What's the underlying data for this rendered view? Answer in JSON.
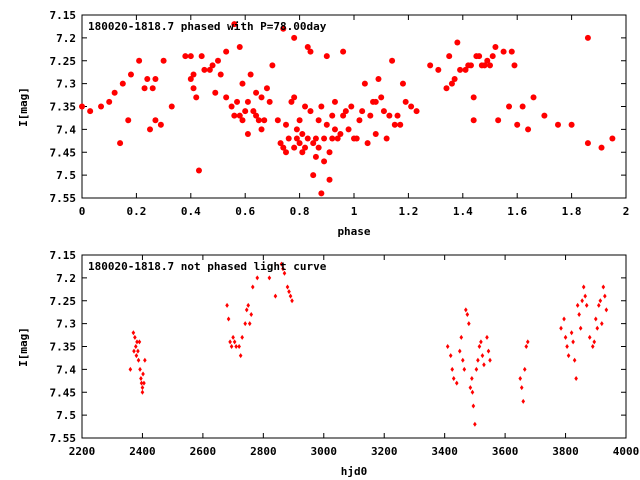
{
  "chart_data": [
    {
      "type": "scatter",
      "title": "180020-1818.7 phased with P=78.00day",
      "xlabel": "phase",
      "ylabel": "I[mag]",
      "xlim": [
        0,
        2
      ],
      "ylim": [
        7.55,
        7.15
      ],
      "y_inverted": true,
      "grid": false,
      "marker_color": "#ff0000",
      "marker": "filled-circle",
      "xticks": [
        "0",
        "0.2",
        "0.4",
        "0.6",
        "0.8",
        "1",
        "1.2",
        "1.4",
        "1.6",
        "1.8",
        "2"
      ],
      "yticks": [
        "7.15",
        "7.2",
        "7.25",
        "7.3",
        "7.35",
        "7.4",
        "7.45",
        "7.5",
        "7.55"
      ],
      "points": [
        [
          0.0,
          7.35
        ],
        [
          0.03,
          7.36
        ],
        [
          0.07,
          7.35
        ],
        [
          0.1,
          7.34
        ],
        [
          0.12,
          7.32
        ],
        [
          0.14,
          7.43
        ],
        [
          0.15,
          7.3
        ],
        [
          0.17,
          7.38
        ],
        [
          0.18,
          7.28
        ],
        [
          0.21,
          7.25
        ],
        [
          0.23,
          7.31
        ],
        [
          0.24,
          7.29
        ],
        [
          0.25,
          7.4
        ],
        [
          0.26,
          7.31
        ],
        [
          0.27,
          7.38
        ],
        [
          0.27,
          7.29
        ],
        [
          0.29,
          7.39
        ],
        [
          0.3,
          7.25
        ],
        [
          0.33,
          7.35
        ],
        [
          0.38,
          7.24
        ],
        [
          0.4,
          7.24
        ],
        [
          0.4,
          7.29
        ],
        [
          0.41,
          7.28
        ],
        [
          0.41,
          7.31
        ],
        [
          0.42,
          7.33
        ],
        [
          0.43,
          7.49
        ],
        [
          0.44,
          7.24
        ],
        [
          0.45,
          7.27
        ],
        [
          0.47,
          7.27
        ],
        [
          0.48,
          7.26
        ],
        [
          0.49,
          7.32
        ],
        [
          0.5,
          7.25
        ],
        [
          0.51,
          7.28
        ],
        [
          0.53,
          7.23
        ],
        [
          0.53,
          7.33
        ],
        [
          0.55,
          7.35
        ],
        [
          0.56,
          7.37
        ],
        [
          0.56,
          7.17
        ],
        [
          0.57,
          7.34
        ],
        [
          0.58,
          7.22
        ],
        [
          0.58,
          7.37
        ],
        [
          0.59,
          7.3
        ],
        [
          0.59,
          7.38
        ],
        [
          0.6,
          7.36
        ],
        [
          0.61,
          7.34
        ],
        [
          0.61,
          7.41
        ],
        [
          0.62,
          7.28
        ],
        [
          0.63,
          7.36
        ],
        [
          0.64,
          7.37
        ],
        [
          0.64,
          7.32
        ],
        [
          0.65,
          7.38
        ],
        [
          0.66,
          7.33
        ],
        [
          0.66,
          7.4
        ],
        [
          0.67,
          7.38
        ],
        [
          0.68,
          7.31
        ],
        [
          0.69,
          7.34
        ],
        [
          0.7,
          7.26
        ],
        [
          0.72,
          7.38
        ],
        [
          0.73,
          7.43
        ],
        [
          0.74,
          7.44
        ],
        [
          0.74,
          7.18
        ],
        [
          0.75,
          7.39
        ],
        [
          0.75,
          7.45
        ],
        [
          0.76,
          7.42
        ],
        [
          0.77,
          7.34
        ],
        [
          0.78,
          7.33
        ],
        [
          0.78,
          7.2
        ],
        [
          0.78,
          7.44
        ],
        [
          0.79,
          7.42
        ],
        [
          0.79,
          7.4
        ],
        [
          0.8,
          7.43
        ],
        [
          0.8,
          7.38
        ],
        [
          0.81,
          7.41
        ],
        [
          0.81,
          7.45
        ],
        [
          0.82,
          7.44
        ],
        [
          0.82,
          7.35
        ],
        [
          0.83,
          7.22
        ],
        [
          0.83,
          7.42
        ],
        [
          0.84,
          7.23
        ],
        [
          0.84,
          7.36
        ],
        [
          0.85,
          7.43
        ],
        [
          0.85,
          7.5
        ],
        [
          0.86,
          7.42
        ],
        [
          0.86,
          7.46
        ],
        [
          0.87,
          7.38
        ],
        [
          0.87,
          7.44
        ],
        [
          0.88,
          7.54
        ],
        [
          0.88,
          7.35
        ],
        [
          0.89,
          7.47
        ],
        [
          0.89,
          7.42
        ],
        [
          0.9,
          7.24
        ],
        [
          0.9,
          7.39
        ],
        [
          0.91,
          7.45
        ],
        [
          0.91,
          7.51
        ],
        [
          0.92,
          7.42
        ],
        [
          0.92,
          7.37
        ],
        [
          0.93,
          7.4
        ],
        [
          0.93,
          7.34
        ],
        [
          0.94,
          7.42
        ],
        [
          0.95,
          7.41
        ],
        [
          0.96,
          7.23
        ],
        [
          0.96,
          7.37
        ],
        [
          0.97,
          7.36
        ],
        [
          0.98,
          7.4
        ],
        [
          0.99,
          7.35
        ],
        [
          1.0,
          7.42
        ],
        [
          1.01,
          7.42
        ],
        [
          1.02,
          7.38
        ],
        [
          1.03,
          7.36
        ],
        [
          1.04,
          7.3
        ],
        [
          1.05,
          7.43
        ],
        [
          1.06,
          7.37
        ],
        [
          1.07,
          7.34
        ],
        [
          1.08,
          7.34
        ],
        [
          1.08,
          7.41
        ],
        [
          1.09,
          7.29
        ],
        [
          1.1,
          7.33
        ],
        [
          1.11,
          7.36
        ],
        [
          1.12,
          7.42
        ],
        [
          1.13,
          7.37
        ],
        [
          1.14,
          7.25
        ],
        [
          1.15,
          7.39
        ],
        [
          1.16,
          7.37
        ],
        [
          1.17,
          7.39
        ],
        [
          1.18,
          7.3
        ],
        [
          1.19,
          7.34
        ],
        [
          1.21,
          7.35
        ],
        [
          1.23,
          7.36
        ],
        [
          1.28,
          7.26
        ],
        [
          1.31,
          7.27
        ],
        [
          1.34,
          7.31
        ],
        [
          1.35,
          7.24
        ],
        [
          1.36,
          7.3
        ],
        [
          1.37,
          7.29
        ],
        [
          1.38,
          7.21
        ],
        [
          1.39,
          7.27
        ],
        [
          1.41,
          7.27
        ],
        [
          1.42,
          7.26
        ],
        [
          1.43,
          7.26
        ],
        [
          1.44,
          7.33
        ],
        [
          1.44,
          7.38
        ],
        [
          1.45,
          7.24
        ],
        [
          1.46,
          7.24
        ],
        [
          1.47,
          7.26
        ],
        [
          1.48,
          7.26
        ],
        [
          1.49,
          7.25
        ],
        [
          1.5,
          7.26
        ],
        [
          1.51,
          7.24
        ],
        [
          1.52,
          7.22
        ],
        [
          1.53,
          7.38
        ],
        [
          1.55,
          7.23
        ],
        [
          1.57,
          7.35
        ],
        [
          1.58,
          7.23
        ],
        [
          1.59,
          7.26
        ],
        [
          1.6,
          7.39
        ],
        [
          1.62,
          7.35
        ],
        [
          1.64,
          7.4
        ],
        [
          1.66,
          7.33
        ],
        [
          1.7,
          7.37
        ],
        [
          1.75,
          7.39
        ],
        [
          1.8,
          7.39
        ],
        [
          1.86,
          7.2
        ],
        [
          1.86,
          7.43
        ],
        [
          1.91,
          7.44
        ],
        [
          1.95,
          7.42
        ]
      ]
    },
    {
      "type": "scatter",
      "title": "180020-1818.7 not phased light curve",
      "xlabel": "hjd0",
      "ylabel": "I[mag]",
      "xlim": [
        2200,
        4000
      ],
      "ylim": [
        7.55,
        7.15
      ],
      "y_inverted": true,
      "grid": false,
      "marker_color": "#ff0000",
      "marker": "small-diamond",
      "xticks": [
        "2200",
        "2400",
        "2600",
        "2800",
        "3000",
        "3200",
        "3400",
        "3600",
        "3800",
        "4000"
      ],
      "yticks": [
        "7.15",
        "7.2",
        "7.25",
        "7.3",
        "7.35",
        "7.4",
        "7.45",
        "7.5",
        "7.55"
      ],
      "points": [
        [
          2360,
          7.4
        ],
        [
          2370,
          7.32
        ],
        [
          2372,
          7.36
        ],
        [
          2375,
          7.33
        ],
        [
          2378,
          7.35
        ],
        [
          2380,
          7.37
        ],
        [
          2382,
          7.34
        ],
        [
          2385,
          7.36
        ],
        [
          2387,
          7.38
        ],
        [
          2390,
          7.34
        ],
        [
          2392,
          7.4
        ],
        [
          2395,
          7.42
        ],
        [
          2397,
          7.43
        ],
        [
          2400,
          7.44
        ],
        [
          2400,
          7.45
        ],
        [
          2402,
          7.41
        ],
        [
          2405,
          7.43
        ],
        [
          2408,
          7.38
        ],
        [
          2680,
          7.26
        ],
        [
          2685,
          7.29
        ],
        [
          2690,
          7.34
        ],
        [
          2695,
          7.35
        ],
        [
          2700,
          7.33
        ],
        [
          2705,
          7.34
        ],
        [
          2710,
          7.35
        ],
        [
          2720,
          7.35
        ],
        [
          2725,
          7.37
        ],
        [
          2730,
          7.33
        ],
        [
          2740,
          7.3
        ],
        [
          2745,
          7.27
        ],
        [
          2750,
          7.26
        ],
        [
          2755,
          7.3
        ],
        [
          2760,
          7.28
        ],
        [
          2765,
          7.22
        ],
        [
          2780,
          7.2
        ],
        [
          2820,
          7.2
        ],
        [
          2840,
          7.24
        ],
        [
          2860,
          7.17
        ],
        [
          2865,
          7.18
        ],
        [
          2870,
          7.19
        ],
        [
          2880,
          7.22
        ],
        [
          2885,
          7.23
        ],
        [
          2890,
          7.24
        ],
        [
          2895,
          7.25
        ],
        [
          3410,
          7.35
        ],
        [
          3420,
          7.37
        ],
        [
          3425,
          7.4
        ],
        [
          3430,
          7.42
        ],
        [
          3440,
          7.43
        ],
        [
          3450,
          7.36
        ],
        [
          3455,
          7.33
        ],
        [
          3460,
          7.38
        ],
        [
          3465,
          7.4
        ],
        [
          3470,
          7.27
        ],
        [
          3475,
          7.28
        ],
        [
          3480,
          7.3
        ],
        [
          3485,
          7.44
        ],
        [
          3490,
          7.42
        ],
        [
          3492,
          7.45
        ],
        [
          3495,
          7.48
        ],
        [
          3500,
          7.52
        ],
        [
          3505,
          7.4
        ],
        [
          3510,
          7.38
        ],
        [
          3515,
          7.35
        ],
        [
          3520,
          7.34
        ],
        [
          3525,
          7.37
        ],
        [
          3530,
          7.39
        ],
        [
          3540,
          7.33
        ],
        [
          3545,
          7.36
        ],
        [
          3550,
          7.38
        ],
        [
          3650,
          7.42
        ],
        [
          3655,
          7.44
        ],
        [
          3660,
          7.47
        ],
        [
          3665,
          7.4
        ],
        [
          3670,
          7.35
        ],
        [
          3675,
          7.34
        ],
        [
          3785,
          7.31
        ],
        [
          3795,
          7.29
        ],
        [
          3800,
          7.33
        ],
        [
          3805,
          7.35
        ],
        [
          3810,
          7.37
        ],
        [
          3820,
          7.32
        ],
        [
          3825,
          7.34
        ],
        [
          3830,
          7.38
        ],
        [
          3835,
          7.42
        ],
        [
          3840,
          7.26
        ],
        [
          3845,
          7.28
        ],
        [
          3850,
          7.31
        ],
        [
          3855,
          7.25
        ],
        [
          3860,
          7.22
        ],
        [
          3865,
          7.24
        ],
        [
          3870,
          7.26
        ],
        [
          3880,
          7.33
        ],
        [
          3890,
          7.35
        ],
        [
          3895,
          7.34
        ],
        [
          3900,
          7.29
        ],
        [
          3905,
          7.31
        ],
        [
          3910,
          7.26
        ],
        [
          3915,
          7.25
        ],
        [
          3920,
          7.3
        ],
        [
          3925,
          7.22
        ],
        [
          3930,
          7.24
        ],
        [
          3935,
          7.27
        ]
      ]
    }
  ]
}
